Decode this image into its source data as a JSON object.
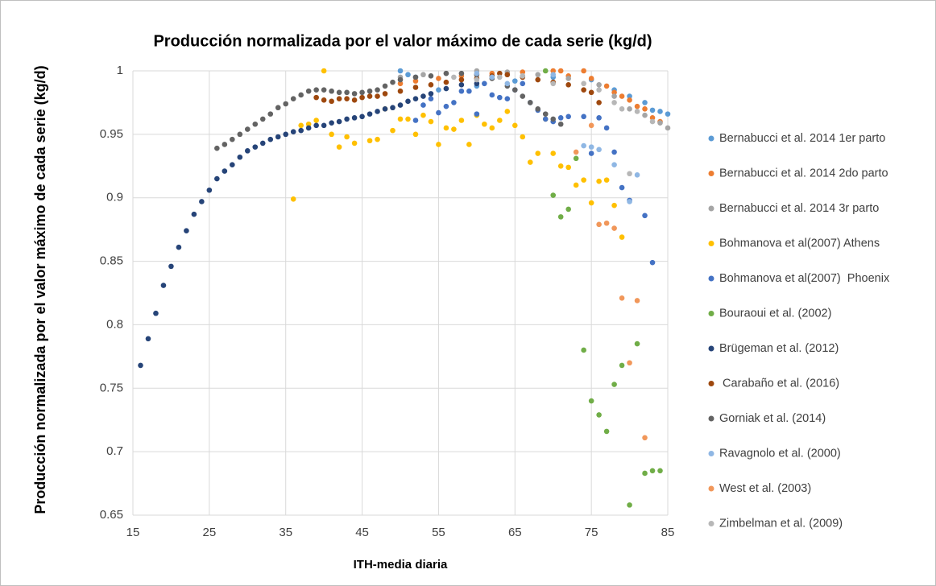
{
  "chart_data": {
    "type": "scatter",
    "title": "Producción normalizada por el valor máximo de cada serie (kg/d)",
    "x_label": "ITH-media diaria",
    "y_label": "Producción normalizada por el valor máximo de cada serie (kg/d)",
    "xlim": [
      15,
      85
    ],
    "xticks": [
      15,
      25,
      35,
      45,
      55,
      65,
      75,
      85
    ],
    "ylim": [
      0.65,
      1
    ],
    "yticks": [
      0.65,
      0.7,
      0.75,
      0.8,
      0.85,
      0.9,
      0.95,
      1
    ],
    "grid": true,
    "legend": "right",
    "series": [
      {
        "name": "Bernabucci et al. 2014 1er parto",
        "color": "#5b9bd5",
        "x": [
          50,
          51,
          52,
          55,
          60,
          65,
          70,
          75,
          78,
          80,
          82,
          83,
          84,
          85
        ],
        "values": [
          1.0,
          0.997,
          0.995,
          0.985,
          0.988,
          0.992,
          0.995,
          0.993,
          0.985,
          0.98,
          0.975,
          0.969,
          0.968,
          0.966
        ]
      },
      {
        "name": "Bernabucci et al. 2014 2do parto",
        "color": "#ed7d31",
        "x": [
          50,
          52,
          55,
          58,
          62,
          66,
          70,
          71,
          72,
          74,
          75,
          77,
          78,
          79,
          80,
          81,
          82,
          83,
          84
        ],
        "values": [
          0.99,
          0.992,
          0.994,
          0.996,
          0.998,
          0.999,
          1.0,
          1.0,
          0.996,
          1.0,
          0.994,
          0.988,
          0.983,
          0.98,
          0.977,
          0.972,
          0.97,
          0.963,
          0.96
        ]
      },
      {
        "name": "Bernabucci et al. 2014 3r parto",
        "color": "#a5a5a5",
        "x": [
          50,
          53,
          56,
          60,
          64,
          68,
          72,
          76,
          78,
          80,
          82,
          84,
          85
        ],
        "values": [
          0.995,
          0.997,
          0.998,
          1.0,
          0.999,
          0.997,
          0.994,
          0.989,
          0.98,
          0.97,
          0.965,
          0.959,
          0.955
        ]
      },
      {
        "name": "Bohmanova et al(2007) Athens",
        "color": "#ffc000",
        "x": [
          36,
          37,
          38,
          39,
          40,
          41,
          42,
          43,
          44,
          46,
          47,
          48,
          49,
          50,
          51,
          52,
          53,
          54,
          55,
          56,
          57,
          58,
          59,
          60,
          61,
          62,
          63,
          64,
          65,
          66,
          67,
          68,
          69,
          70,
          71,
          72,
          73,
          74,
          75,
          76,
          77,
          78,
          79
        ],
        "values": [
          0.899,
          0.957,
          0.958,
          0.961,
          1.0,
          0.95,
          0.94,
          0.948,
          0.943,
          0.945,
          0.946,
          0.97,
          0.953,
          0.962,
          0.962,
          0.95,
          0.965,
          0.96,
          0.942,
          0.955,
          0.954,
          0.961,
          0.942,
          0.965,
          0.958,
          0.955,
          0.961,
          0.968,
          0.957,
          0.948,
          0.928,
          0.935,
          0.962,
          0.935,
          0.925,
          0.924,
          0.91,
          0.914,
          0.896,
          0.913,
          0.914,
          0.894,
          0.869
        ]
      },
      {
        "name": "Bohmanova et al(2007)  Phoenix",
        "color": "#4472c4",
        "x": [
          52,
          53,
          54,
          55,
          56,
          57,
          58,
          59,
          60,
          61,
          62,
          63,
          64,
          65,
          66,
          67,
          68,
          69,
          70,
          71,
          72,
          74,
          75,
          76,
          77,
          78,
          79,
          80,
          82,
          83
        ],
        "values": [
          0.961,
          0.973,
          0.978,
          0.967,
          0.972,
          0.975,
          0.984,
          0.984,
          0.966,
          0.99,
          0.981,
          0.979,
          0.978,
          0.985,
          0.99,
          0.975,
          0.969,
          0.962,
          0.96,
          0.963,
          0.964,
          0.964,
          0.935,
          0.963,
          0.955,
          0.936,
          0.908,
          0.898,
          0.886,
          0.849
        ]
      },
      {
        "name": "Bouraoui et al. (2002)",
        "color": "#70ad47",
        "x": [
          69,
          70,
          71,
          72,
          73,
          74,
          75,
          76,
          77,
          78,
          79,
          80,
          81,
          82,
          83,
          84
        ],
        "values": [
          1.0,
          0.902,
          0.885,
          0.891,
          0.931,
          0.78,
          0.74,
          0.729,
          0.716,
          0.753,
          0.768,
          0.658,
          0.785,
          0.683,
          0.685,
          0.685
        ]
      },
      {
        "name": "Brügeman et al. (2012)",
        "color": "#264478",
        "x": [
          16,
          17,
          18,
          19,
          20,
          21,
          22,
          23,
          24,
          25,
          26,
          27,
          28,
          29,
          30,
          31,
          32,
          33,
          34,
          35,
          36,
          37,
          38,
          39,
          40,
          41,
          42,
          43,
          44,
          45,
          46,
          47,
          48,
          49,
          50,
          51,
          52,
          53,
          54,
          56,
          58,
          60
        ],
        "values": [
          0.768,
          0.789,
          0.809,
          0.831,
          0.846,
          0.861,
          0.874,
          0.887,
          0.897,
          0.906,
          0.915,
          0.921,
          0.926,
          0.932,
          0.937,
          0.94,
          0.943,
          0.946,
          0.948,
          0.95,
          0.952,
          0.953,
          0.955,
          0.957,
          0.957,
          0.959,
          0.96,
          0.962,
          0.963,
          0.964,
          0.966,
          0.968,
          0.97,
          0.971,
          0.973,
          0.976,
          0.978,
          0.98,
          0.982,
          0.986,
          0.989,
          0.99
        ]
      },
      {
        "name": " Carabaño et al. (2016)",
        "color": "#9e480e",
        "x": [
          39,
          40,
          41,
          42,
          43,
          44,
          45,
          46,
          47,
          48,
          50,
          52,
          54,
          56,
          58,
          60,
          62,
          63,
          64,
          66,
          68,
          70,
          72,
          74,
          75,
          76
        ],
        "values": [
          0.979,
          0.977,
          0.976,
          0.978,
          0.978,
          0.977,
          0.979,
          0.98,
          0.98,
          0.982,
          0.984,
          0.987,
          0.989,
          0.991,
          0.993,
          0.994,
          0.996,
          0.998,
          0.997,
          0.995,
          0.993,
          0.991,
          0.989,
          0.985,
          0.983,
          0.975
        ]
      },
      {
        "name": "Gorniak et al. (2014)",
        "color": "#636363",
        "x": [
          26,
          27,
          28,
          29,
          30,
          31,
          32,
          33,
          34,
          35,
          36,
          37,
          38,
          39,
          40,
          41,
          42,
          43,
          44,
          45,
          46,
          47,
          48,
          49,
          50,
          52,
          54,
          56,
          58,
          60,
          62,
          64,
          65,
          66,
          67,
          68,
          69,
          70,
          71
        ],
        "values": [
          0.939,
          0.942,
          0.946,
          0.95,
          0.954,
          0.958,
          0.962,
          0.966,
          0.971,
          0.974,
          0.978,
          0.981,
          0.984,
          0.985,
          0.985,
          0.984,
          0.983,
          0.983,
          0.982,
          0.983,
          0.984,
          0.985,
          0.988,
          0.991,
          0.993,
          0.995,
          0.996,
          0.998,
          0.998,
          0.997,
          0.994,
          0.988,
          0.985,
          0.98,
          0.975,
          0.97,
          0.966,
          0.962,
          0.958
        ]
      },
      {
        "name": "Ravagnolo et al. (2000)",
        "color": "#8fb7e4",
        "x": [
          60,
          62,
          64,
          66,
          70,
          74,
          75,
          76,
          78,
          80,
          81
        ],
        "values": [
          0.998,
          0.995,
          0.99,
          0.996,
          0.997,
          0.941,
          0.94,
          0.938,
          0.926,
          0.897,
          0.918
        ]
      },
      {
        "name": "West et al. (2003)",
        "color": "#f1975a",
        "x": [
          73,
          75,
          76,
          77,
          78,
          79,
          80,
          81,
          82
        ],
        "values": [
          0.936,
          0.957,
          0.879,
          0.88,
          0.876,
          0.821,
          0.77,
          0.819,
          0.711
        ]
      },
      {
        "name": "Zimbelman et al. (2009)",
        "color": "#b7b7b7",
        "x": [
          57,
          60,
          63,
          66,
          70,
          74,
          76,
          78,
          79,
          80,
          81,
          83
        ],
        "values": [
          0.995,
          0.993,
          0.995,
          0.996,
          0.99,
          0.99,
          0.985,
          0.975,
          0.97,
          0.919,
          0.968,
          0.96
        ]
      }
    ]
  }
}
